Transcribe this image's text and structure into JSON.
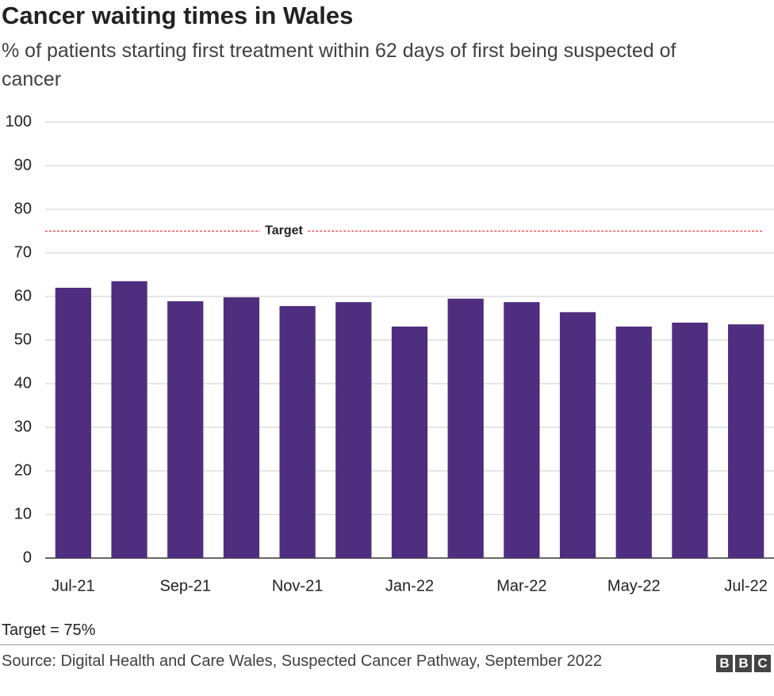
{
  "chart_data": {
    "type": "bar",
    "title": "Cancer waiting times in Wales",
    "subtitle": "% of patients starting first treatment within 62 days of first being suspected of cancer",
    "categories": [
      "Jul-21",
      null,
      "Sep-21",
      null,
      "Nov-21",
      null,
      "Jan-22",
      null,
      "Mar-22",
      null,
      "May-22",
      null,
      "Jul-22"
    ],
    "values": [
      62.0,
      63.5,
      58.9,
      59.8,
      57.8,
      58.7,
      53.1,
      59.5,
      58.7,
      56.4,
      53.1,
      54.0,
      53.6
    ],
    "color": "#4f2d7f",
    "ylim": [
      0,
      100
    ],
    "yticks": [
      0,
      10,
      20,
      30,
      40,
      50,
      60,
      70,
      80,
      90,
      100
    ],
    "grid": true,
    "annotations": [
      {
        "label": "Target",
        "value": 75,
        "color": "#e31b23"
      }
    ],
    "note": "Target = 75%",
    "source": "Source: Digital Health and Care Wales, Suspected Cancer Pathway, September 2022",
    "logo": [
      "B",
      "B",
      "C"
    ]
  }
}
